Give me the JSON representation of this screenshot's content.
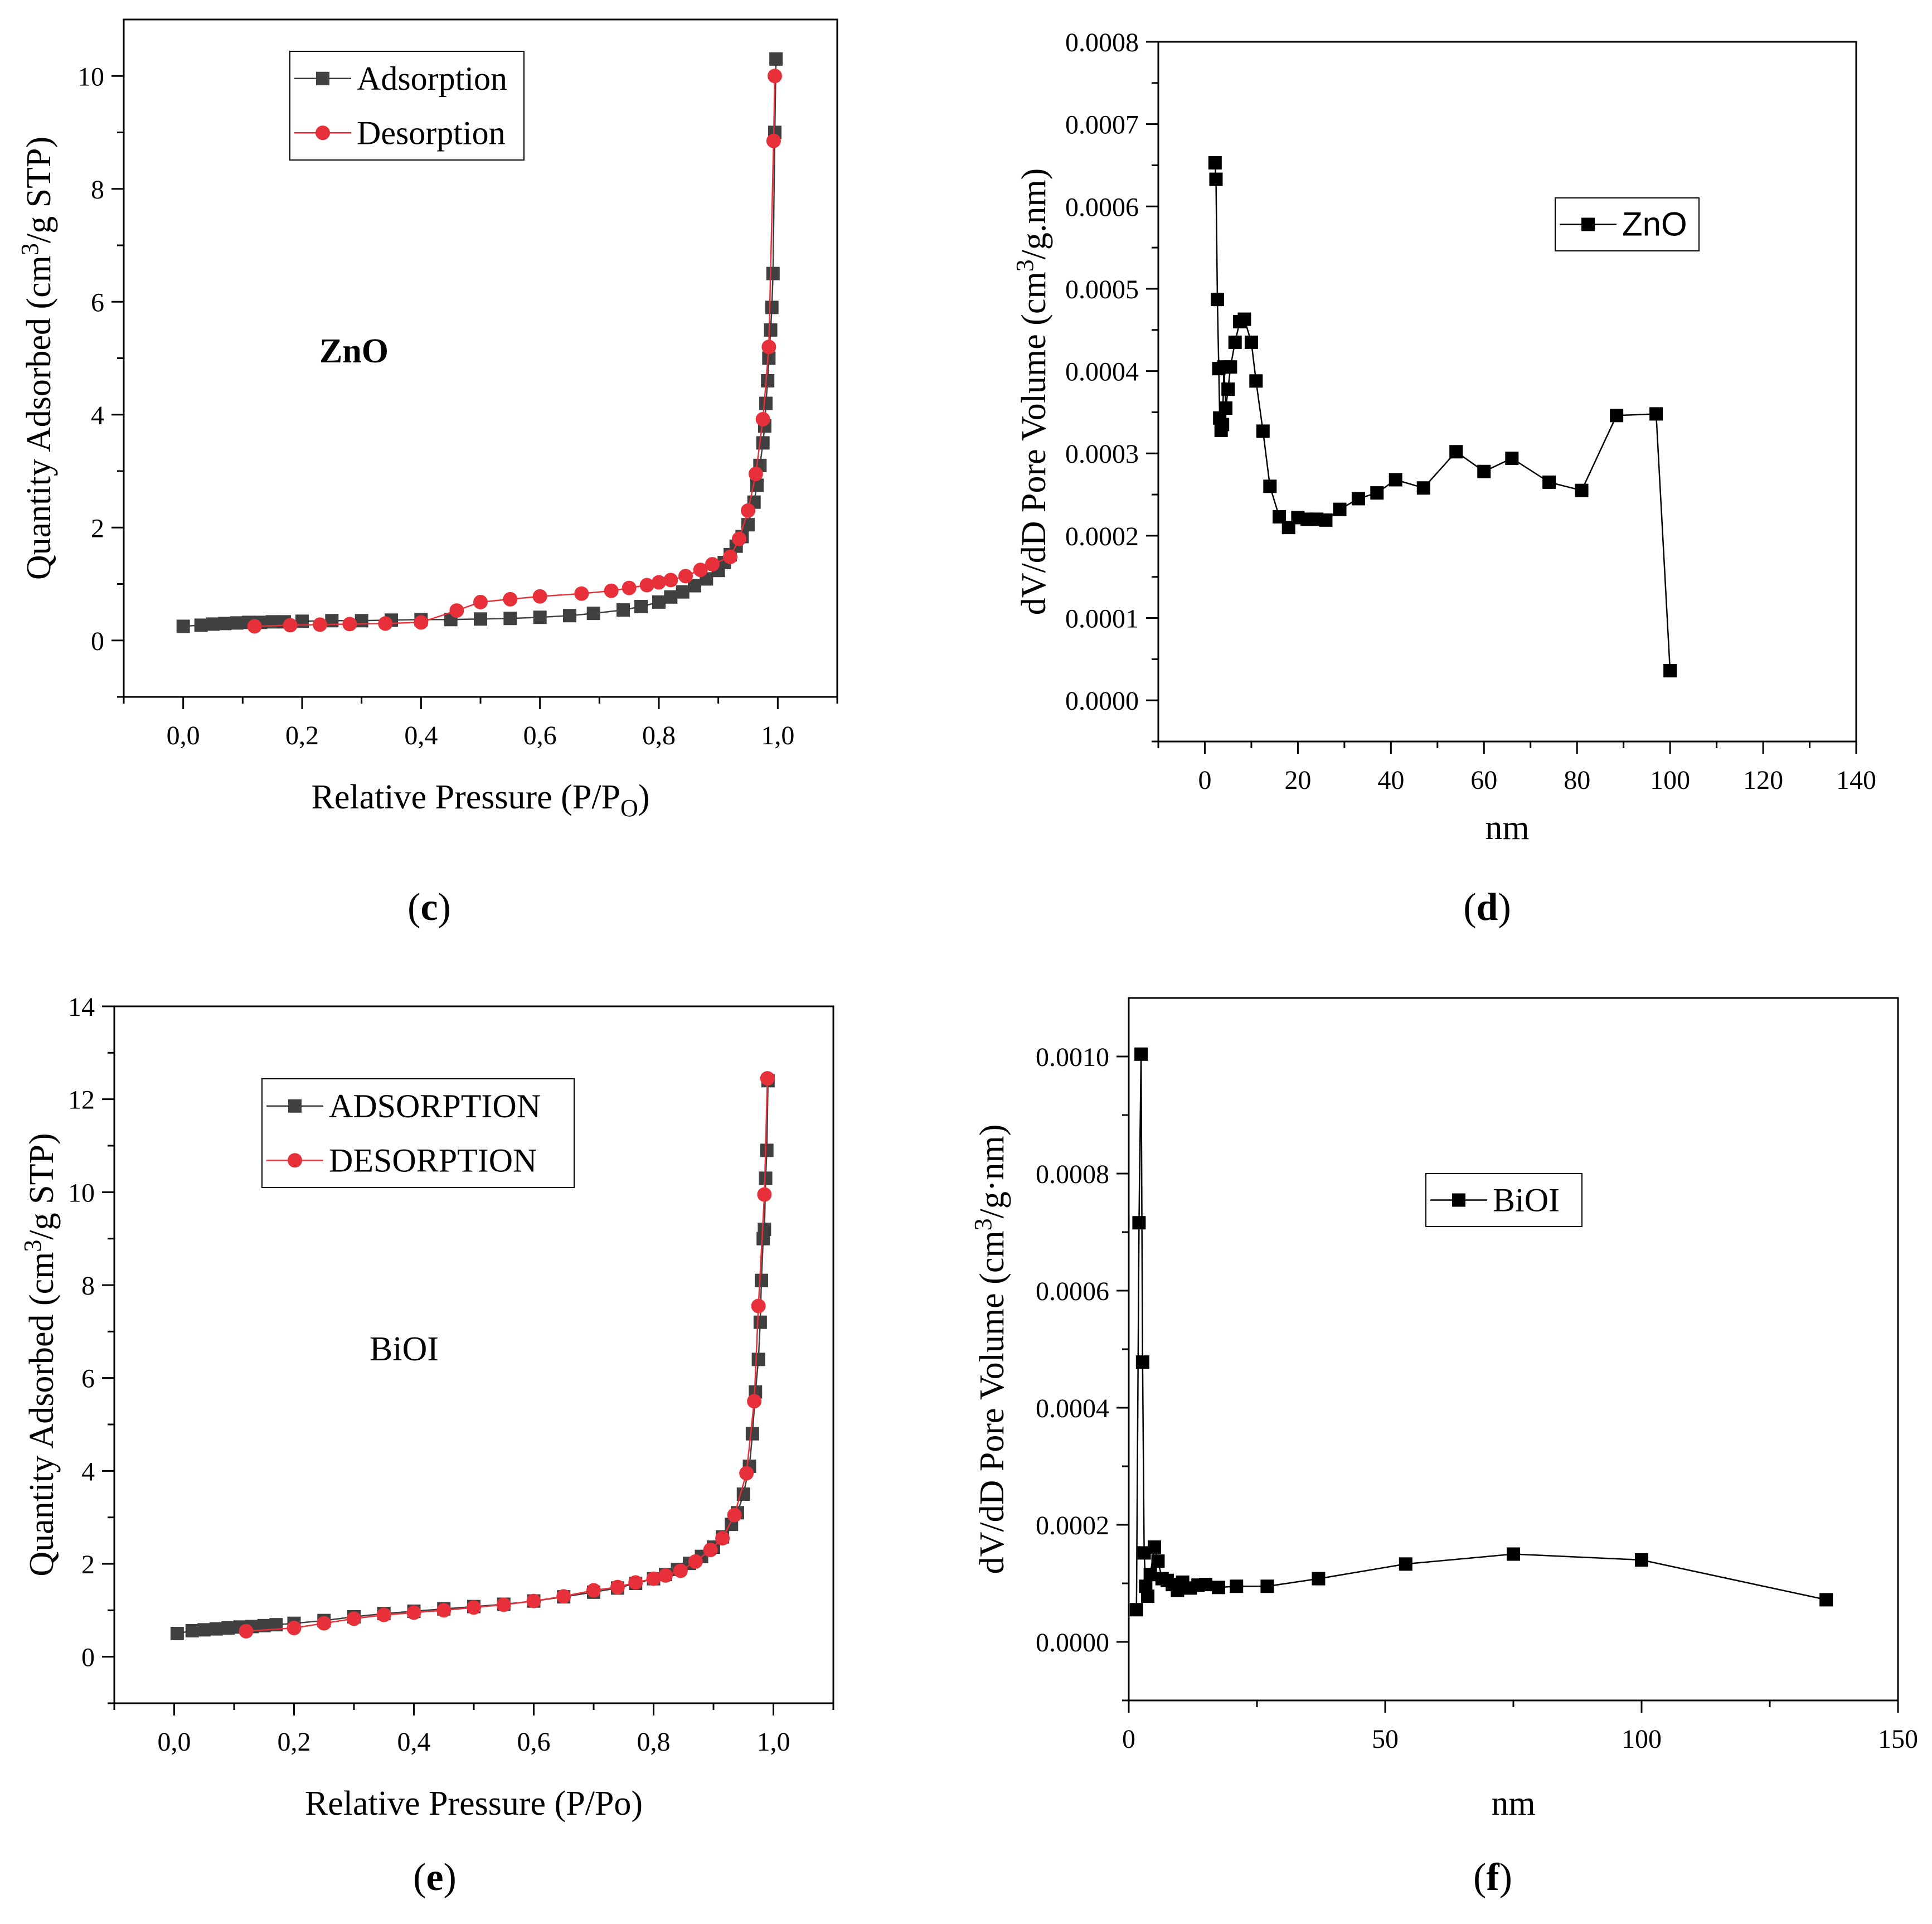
{
  "charts": [
    {
      "id": "c",
      "type": "scatter",
      "panel_label": "(c)",
      "inner_label": "ZnO",
      "inner_label_bold": true,
      "xlabel": "Relative Pressure (P/P",
      "xlabel_sub": "O",
      "xlabel_tail": ")",
      "ylabel": "Quantity Adsorbed (cm",
      "ylabel_sup": "3",
      "ylabel_tail": "/g STP)",
      "xlim": [
        -0.1,
        1.1
      ],
      "ylim": [
        -1,
        11
      ],
      "xticks": [
        0.0,
        0.2,
        0.4,
        0.6,
        0.8,
        1.0
      ],
      "xtick_labels": [
        "0,0",
        "0,2",
        "0,4",
        "0,6",
        "0,8",
        "1,0"
      ],
      "yticks": [
        0,
        2,
        4,
        6,
        8,
        10
      ],
      "ytick_labels": [
        "0",
        "2",
        "4",
        "6",
        "8",
        "10"
      ],
      "legend_position": "top-left",
      "series": [
        {
          "name": "Adsorption",
          "color": "#404040",
          "marker": "square",
          "points": [
            [
              0.0,
              0.25
            ],
            [
              0.03,
              0.27
            ],
            [
              0.05,
              0.29
            ],
            [
              0.07,
              0.3
            ],
            [
              0.09,
              0.31
            ],
            [
              0.11,
              0.32
            ],
            [
              0.13,
              0.32
            ],
            [
              0.15,
              0.33
            ],
            [
              0.17,
              0.33
            ],
            [
              0.2,
              0.34
            ],
            [
              0.25,
              0.35
            ],
            [
              0.3,
              0.35
            ],
            [
              0.35,
              0.36
            ],
            [
              0.4,
              0.37
            ],
            [
              0.45,
              0.37
            ],
            [
              0.5,
              0.38
            ],
            [
              0.55,
              0.39
            ],
            [
              0.6,
              0.41
            ],
            [
              0.65,
              0.44
            ],
            [
              0.69,
              0.48
            ],
            [
              0.74,
              0.54
            ],
            [
              0.77,
              0.6
            ],
            [
              0.8,
              0.68
            ],
            [
              0.82,
              0.77
            ],
            [
              0.84,
              0.86
            ],
            [
              0.86,
              0.97
            ],
            [
              0.88,
              1.09
            ],
            [
              0.9,
              1.24
            ],
            [
              0.91,
              1.38
            ],
            [
              0.92,
              1.52
            ],
            [
              0.93,
              1.67
            ],
            [
              0.94,
              1.84
            ],
            [
              0.95,
              2.05
            ],
            [
              0.96,
              2.45
            ],
            [
              0.965,
              2.75
            ],
            [
              0.97,
              3.1
            ],
            [
              0.975,
              3.5
            ],
            [
              0.978,
              3.8
            ],
            [
              0.98,
              4.2
            ],
            [
              0.983,
              4.6
            ],
            [
              0.985,
              5.0
            ],
            [
              0.988,
              5.5
            ],
            [
              0.99,
              5.9
            ],
            [
              0.992,
              6.5
            ],
            [
              0.995,
              9.0
            ],
            [
              0.997,
              10.3
            ]
          ]
        },
        {
          "name": "Desorption",
          "color": "#e8303a",
          "marker": "circle",
          "points": [
            [
              0.995,
              10.0
            ],
            [
              0.993,
              8.85
            ],
            [
              0.985,
              5.2
            ],
            [
              0.975,
              3.92
            ],
            [
              0.963,
              2.95
            ],
            [
              0.95,
              2.3
            ],
            [
              0.935,
              1.8
            ],
            [
              0.92,
              1.48
            ],
            [
              0.89,
              1.35
            ],
            [
              0.87,
              1.25
            ],
            [
              0.845,
              1.14
            ],
            [
              0.82,
              1.07
            ],
            [
              0.8,
              1.03
            ],
            [
              0.78,
              0.98
            ],
            [
              0.75,
              0.93
            ],
            [
              0.72,
              0.88
            ],
            [
              0.67,
              0.83
            ],
            [
              0.6,
              0.78
            ],
            [
              0.55,
              0.73
            ],
            [
              0.5,
              0.68
            ],
            [
              0.46,
              0.53
            ],
            [
              0.4,
              0.32
            ],
            [
              0.34,
              0.3
            ],
            [
              0.28,
              0.29
            ],
            [
              0.23,
              0.28
            ],
            [
              0.18,
              0.27
            ],
            [
              0.12,
              0.25
            ]
          ]
        }
      ]
    },
    {
      "id": "d",
      "type": "line",
      "panel_label": "(d)",
      "xlabel": "nm",
      "ylabel": "dV/dD Pore Volume (cm",
      "ylabel_sup": "3",
      "ylabel_tail": "/g.nm)",
      "xlim": [
        -10,
        140
      ],
      "ylim": [
        -5e-05,
        0.0008
      ],
      "xticks": [
        0,
        20,
        40,
        60,
        80,
        100,
        120,
        140
      ],
      "xtick_labels": [
        "0",
        "20",
        "40",
        "60",
        "80",
        "100",
        "120",
        "140"
      ],
      "yticks": [
        0.0,
        0.0001,
        0.0002,
        0.0003,
        0.0004,
        0.0005,
        0.0006,
        0.0007,
        0.0008
      ],
      "ytick_labels": [
        "0.0000",
        "0.0001",
        "0.0002",
        "0.0003",
        "0.0004",
        "0.0005",
        "0.0006",
        "0.0007",
        "0.0008"
      ],
      "legend_position": "top-right",
      "series": [
        {
          "name": "ZnO",
          "color": "#000000",
          "marker": "square",
          "points": [
            [
              2.2,
              0.000653
            ],
            [
              2.4,
              0.000633
            ],
            [
              2.7,
              0.000487
            ],
            [
              3.0,
              0.000403
            ],
            [
              3.2,
              0.000343
            ],
            [
              3.5,
              0.000328
            ],
            [
              3.8,
              0.000335
            ],
            [
              4.1,
              0.000405
            ],
            [
              4.5,
              0.000355
            ],
            [
              5.0,
              0.000378
            ],
            [
              5.5,
              0.000405
            ],
            [
              6.5,
              0.000435
            ],
            [
              7.5,
              0.00046
            ],
            [
              8.5,
              0.000463
            ],
            [
              10.0,
              0.000435
            ],
            [
              11.0,
              0.000388
            ],
            [
              12.5,
              0.000327
            ],
            [
              14.0,
              0.00026
            ],
            [
              16.0,
              0.000223
            ],
            [
              18.0,
              0.00021
            ],
            [
              20.0,
              0.000222
            ],
            [
              22.0,
              0.00022
            ],
            [
              24.0,
              0.00022
            ],
            [
              26.0,
              0.000219
            ],
            [
              29.0,
              0.000232
            ],
            [
              33.0,
              0.000245
            ],
            [
              37.0,
              0.000252
            ],
            [
              41.0,
              0.000268
            ],
            [
              47.0,
              0.000258
            ],
            [
              54.0,
              0.000302
            ],
            [
              60.0,
              0.000278
            ],
            [
              66.0,
              0.000294
            ],
            [
              74.0,
              0.000265
            ],
            [
              81.0,
              0.000255
            ],
            [
              88.5,
              0.000346
            ],
            [
              97.0,
              0.000348
            ],
            [
              100.0,
              3.6e-05
            ]
          ]
        }
      ]
    },
    {
      "id": "e",
      "type": "scatter",
      "panel_label": "(e)",
      "inner_label": "BiOI",
      "inner_label_bold": false,
      "xlabel": "Relative Pressure (P/Po)",
      "ylabel": "Quantity Adsorbed (cm",
      "ylabel_sup": "3",
      "ylabel_tail": "/g STP)",
      "xlim": [
        -0.1,
        1.1
      ],
      "ylim": [
        -1,
        14
      ],
      "xticks": [
        0.0,
        0.2,
        0.4,
        0.6,
        0.8,
        1.0
      ],
      "xtick_labels": [
        "0,0",
        "0,2",
        "0,4",
        "0,6",
        "0,8",
        "1,0"
      ],
      "yticks": [
        0,
        2,
        4,
        6,
        8,
        10,
        12,
        14
      ],
      "ytick_labels": [
        "0",
        "2",
        "4",
        "6",
        "8",
        "10",
        "12",
        "14"
      ],
      "legend_position": "top-left",
      "series": [
        {
          "name": "ADSORPTION",
          "color": "#404040",
          "marker": "square",
          "points": [
            [
              0.005,
              0.5
            ],
            [
              0.03,
              0.56
            ],
            [
              0.05,
              0.58
            ],
            [
              0.07,
              0.6
            ],
            [
              0.09,
              0.62
            ],
            [
              0.11,
              0.64
            ],
            [
              0.13,
              0.65
            ],
            [
              0.15,
              0.67
            ],
            [
              0.17,
              0.69
            ],
            [
              0.2,
              0.72
            ],
            [
              0.25,
              0.78
            ],
            [
              0.3,
              0.86
            ],
            [
              0.35,
              0.93
            ],
            [
              0.4,
              0.98
            ],
            [
              0.45,
              1.03
            ],
            [
              0.5,
              1.08
            ],
            [
              0.55,
              1.13
            ],
            [
              0.6,
              1.2
            ],
            [
              0.65,
              1.29
            ],
            [
              0.7,
              1.39
            ],
            [
              0.74,
              1.48
            ],
            [
              0.77,
              1.58
            ],
            [
              0.8,
              1.68
            ],
            [
              0.82,
              1.77
            ],
            [
              0.84,
              1.88
            ],
            [
              0.86,
              2.01
            ],
            [
              0.88,
              2.16
            ],
            [
              0.9,
              2.36
            ],
            [
              0.915,
              2.58
            ],
            [
              0.93,
              2.85
            ],
            [
              0.94,
              3.1
            ],
            [
              0.95,
              3.5
            ],
            [
              0.96,
              4.1
            ],
            [
              0.965,
              4.8
            ],
            [
              0.97,
              5.7
            ],
            [
              0.975,
              6.4
            ],
            [
              0.978,
              7.2
            ],
            [
              0.98,
              8.1
            ],
            [
              0.983,
              9.0
            ],
            [
              0.985,
              9.2
            ],
            [
              0.987,
              10.3
            ],
            [
              0.989,
              10.9
            ],
            [
              0.991,
              12.4
            ]
          ]
        },
        {
          "name": "DESORPTION",
          "color": "#e8303a",
          "marker": "circle",
          "points": [
            [
              0.99,
              12.45
            ],
            [
              0.985,
              9.95
            ],
            [
              0.975,
              7.55
            ],
            [
              0.968,
              5.5
            ],
            [
              0.955,
              3.95
            ],
            [
              0.935,
              3.05
            ],
            [
              0.915,
              2.55
            ],
            [
              0.895,
              2.3
            ],
            [
              0.87,
              2.05
            ],
            [
              0.845,
              1.85
            ],
            [
              0.82,
              1.75
            ],
            [
              0.8,
              1.68
            ],
            [
              0.77,
              1.6
            ],
            [
              0.74,
              1.5
            ],
            [
              0.7,
              1.43
            ],
            [
              0.65,
              1.3
            ],
            [
              0.6,
              1.2
            ],
            [
              0.55,
              1.12
            ],
            [
              0.5,
              1.06
            ],
            [
              0.45,
              1.0
            ],
            [
              0.4,
              0.95
            ],
            [
              0.35,
              0.9
            ],
            [
              0.3,
              0.82
            ],
            [
              0.25,
              0.72
            ],
            [
              0.2,
              0.62
            ],
            [
              0.12,
              0.55
            ]
          ]
        }
      ]
    },
    {
      "id": "f",
      "type": "line",
      "panel_label": "(f)",
      "xlabel": "nm",
      "ylabel": "dV/dD Pore Volume (cm",
      "ylabel_sup": "3",
      "ylabel_tail": "/g·nm)",
      "xlim": [
        0,
        150
      ],
      "ylim": [
        -0.0001,
        0.0011
      ],
      "xticks": [
        0,
        50,
        100,
        150
      ],
      "xtick_labels": [
        "0",
        "50",
        "100",
        "150"
      ],
      "yticks": [
        0.0,
        0.0002,
        0.0004,
        0.0006,
        0.0008,
        0.001
      ],
      "ytick_labels": [
        "0.0000",
        "0.0002",
        "0.0004",
        "0.0006",
        "0.0008",
        "0.0010"
      ],
      "legend_position": "top-right",
      "series": [
        {
          "name": "BiOI",
          "color": "#000000",
          "marker": "square",
          "points": [
            [
              1.5,
              5.5e-05
            ],
            [
              2.0,
              0.000716
            ],
            [
              2.4,
              0.001004
            ],
            [
              2.7,
              0.000478
            ],
            [
              3.0,
              0.000152
            ],
            [
              3.3,
              9.5e-05
            ],
            [
              3.7,
              7.8e-05
            ],
            [
              4.2,
              0.000115
            ],
            [
              5.0,
              0.000162
            ],
            [
              5.7,
              0.000138
            ],
            [
              6.5,
              0.000108
            ],
            [
              7.5,
              0.000105
            ],
            [
              8.5,
              9.8e-05
            ],
            [
              9.5,
              8.8e-05
            ],
            [
              10.5,
              0.000102
            ],
            [
              12.0,
              9.2e-05
            ],
            [
              13.5,
              9.7e-05
            ],
            [
              15.0,
              9.8e-05
            ],
            [
              17.5,
              9.3e-05
            ],
            [
              21.0,
              9.5e-05
            ],
            [
              27.0,
              9.5e-05
            ],
            [
              37.0,
              0.000108
            ],
            [
              54.0,
              0.000133
            ],
            [
              75.0,
              0.00015
            ],
            [
              100.0,
              0.00014
            ],
            [
              136.0,
              7.2e-05
            ]
          ]
        }
      ]
    }
  ]
}
